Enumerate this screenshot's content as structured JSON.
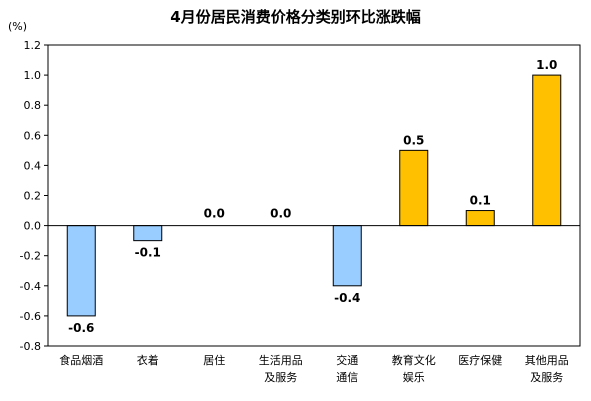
{
  "chart_data": {
    "type": "bar",
    "title": "4月份居民消费价格分类别环比涨跌幅",
    "ylabel": "(%)",
    "xlabel": "",
    "ylim": [
      -0.8,
      1.2
    ],
    "yticks": [
      -0.8,
      -0.6,
      -0.4,
      -0.2,
      0.0,
      0.2,
      0.4,
      0.6,
      0.8,
      1.0,
      1.2
    ],
    "ytick_labels": [
      "-0.8",
      "-0.6",
      "-0.4",
      "-0.2",
      "0.0",
      "0.2",
      "0.4",
      "0.6",
      "0.8",
      "1.0",
      "1.2"
    ],
    "categories": [
      [
        "食品烟酒"
      ],
      [
        "衣着"
      ],
      [
        "居住"
      ],
      [
        "生活用品",
        "及服务"
      ],
      [
        "交通",
        "通信"
      ],
      [
        "教育文化",
        "娱乐"
      ],
      [
        "医疗保健"
      ],
      [
        "其他用品",
        "及服务"
      ]
    ],
    "values": [
      -0.6,
      -0.1,
      0.0,
      0.0,
      -0.4,
      0.5,
      0.1,
      1.0
    ],
    "data_labels": [
      "-0.6",
      "-0.1",
      "0.0",
      "0.0",
      "-0.4",
      "0.5",
      "0.1",
      "1.0"
    ],
    "colors": {
      "negative": "#99ccff",
      "positive": "#ffc000",
      "border": "#000000"
    },
    "grid": false,
    "legend": "none"
  }
}
